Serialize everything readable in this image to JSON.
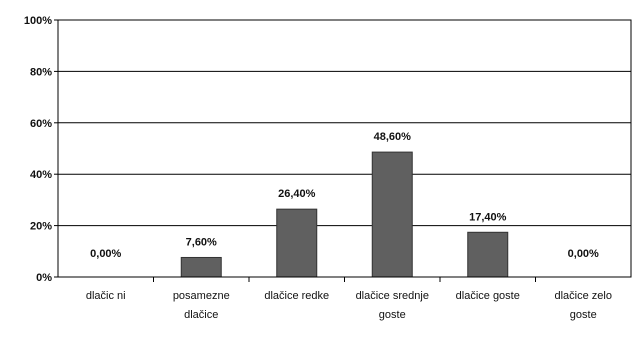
{
  "chart_data": {
    "type": "bar",
    "categories": [
      [
        "dlačic ni"
      ],
      [
        "posamezne",
        "dlačice"
      ],
      [
        "dlačice redke"
      ],
      [
        "dlačice srednje",
        "goste"
      ],
      [
        "dlačice goste"
      ],
      [
        "dlačice zelo",
        "goste"
      ]
    ],
    "values": [
      0.0,
      7.6,
      26.4,
      48.6,
      17.4,
      0.0
    ],
    "data_labels": [
      "0,00%",
      "7,60%",
      "26,40%",
      "48,60%",
      "17,40%",
      "0,00%"
    ],
    "yticks": [
      {
        "value": 0,
        "label": "0%"
      },
      {
        "value": 20,
        "label": "20%"
      },
      {
        "value": 40,
        "label": "40%"
      },
      {
        "value": 60,
        "label": "60%"
      },
      {
        "value": 80,
        "label": "80%"
      },
      {
        "value": 100,
        "label": "100%"
      }
    ],
    "ylim": [
      0,
      100
    ],
    "grid": true,
    "legend": "none",
    "bar_color": "#606060",
    "grid_color": "#000000"
  }
}
